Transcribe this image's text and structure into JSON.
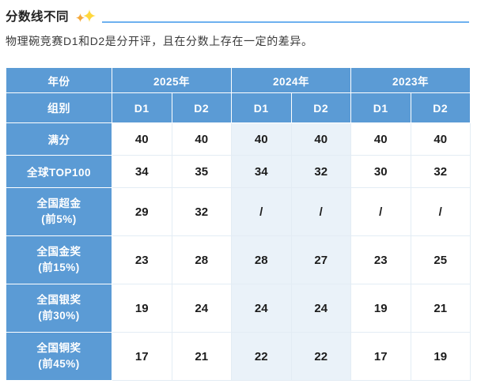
{
  "page": {
    "title": "分数线不同",
    "subtitle": "物理碗竞赛D1和D2是分开评，且在分数上存在一定的差异。"
  },
  "table": {
    "corner_year_label": "年份",
    "corner_group_label": "组别",
    "year_columns": [
      "2025年",
      "2024年",
      "2023年"
    ],
    "sub_columns": [
      "D1",
      "D2",
      "D1",
      "D2",
      "D1",
      "D2"
    ],
    "rows": [
      {
        "label": "满分",
        "label_sub": "",
        "values": [
          "40",
          "40",
          "40",
          "40",
          "40",
          "40"
        ]
      },
      {
        "label": "全球TOP100",
        "label_sub": "",
        "values": [
          "34",
          "35",
          "34",
          "32",
          "30",
          "32"
        ]
      },
      {
        "label": "全国超金",
        "label_sub": "(前5%)",
        "values": [
          "29",
          "32",
          "/",
          "/",
          "/",
          "/"
        ]
      },
      {
        "label": "全国金奖",
        "label_sub": "(前15%)",
        "values": [
          "23",
          "28",
          "28",
          "27",
          "23",
          "25"
        ]
      },
      {
        "label": "全国银奖",
        "label_sub": "(前30%)",
        "values": [
          "19",
          "24",
          "24",
          "24",
          "19",
          "21"
        ]
      },
      {
        "label": "全国铜奖",
        "label_sub": "(前45%)",
        "values": [
          "17",
          "21",
          "22",
          "22",
          "17",
          "19"
        ]
      }
    ]
  },
  "colors": {
    "header_blue": "#5B9BD5",
    "tint_column": "#EAF2F9",
    "title_line": "#6EB1EF",
    "sparkle_small": "#F5A93B",
    "sparkle_large": "#FFD83D",
    "number_ink": "#1C1C1C"
  }
}
